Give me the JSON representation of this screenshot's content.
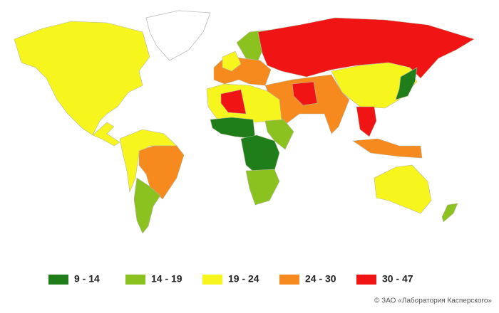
{
  "legend": {
    "items": [
      {
        "label": "9 - 14",
        "color": "#1f7d1a"
      },
      {
        "label": "14 - 19",
        "color": "#8cc220"
      },
      {
        "label": "19 - 24",
        "color": "#f7f51e"
      },
      {
        "label": "24 - 30",
        "color": "#f68a1f"
      },
      {
        "label": "30 - 47",
        "color": "#f01414"
      }
    ]
  },
  "copyright": "© ЗАО «Лаборатория Касперского»"
}
